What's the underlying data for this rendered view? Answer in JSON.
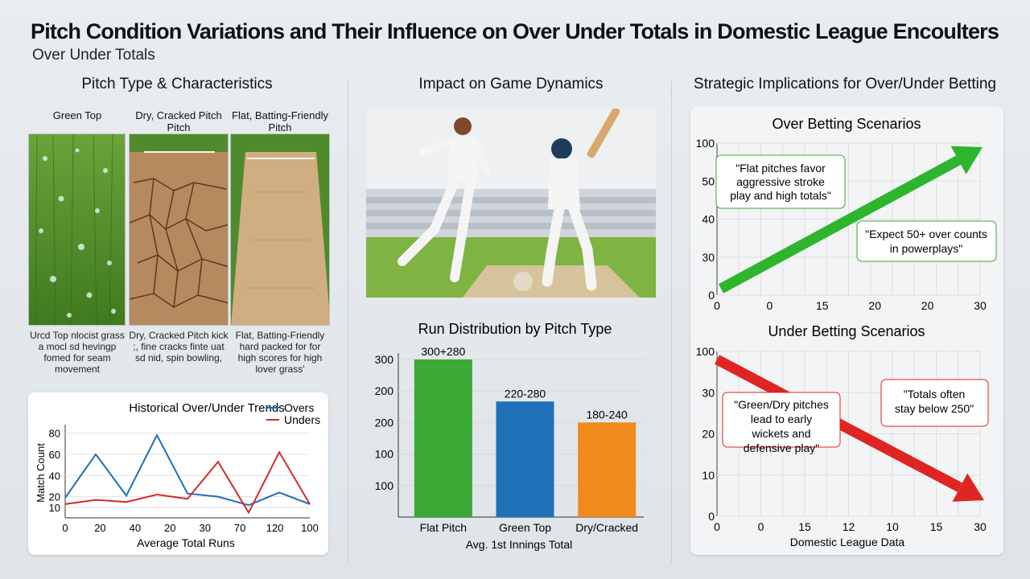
{
  "header": {
    "title": "Pitch Condition Variations and Their Influence on Over Under Totals in Domestic League Encoulters",
    "subtitle": "Over Under Totals"
  },
  "columns": {
    "left": "Pitch Type & Characteristics",
    "middle": "Impact on Game Dynamics",
    "right": "Strategic Implications for Over/Under Betting"
  },
  "pitches": [
    {
      "label": "Green Top",
      "desc": "Urcd Top nlocist grass a mocl sd hevingp fomed for seam movement",
      "color": "#5a9a2e"
    },
    {
      "label": "Dry, Cracked Pitch Pitch",
      "desc": "Dry, Cracked Pitch kick ;, fine cracks finte uat sd nid, spin bowling,",
      "color": "#b98a5c"
    },
    {
      "label": "Flat, Batting-Friendly Pitch",
      "desc": "Flat, Batting-Friendly hard packed for for high scores for high lover grass'",
      "color": "#c8a57a"
    }
  ],
  "chart_data": [
    {
      "type": "line",
      "title": "Historical Over/Under Trends",
      "xlabel": "Average Total Runs",
      "ylabel": "Match Count",
      "x_tick_labels": [
        "0",
        "20",
        "40",
        "20",
        "30",
        "70",
        "120",
        "100"
      ],
      "y_tick_labels": [
        "10",
        "20",
        "40",
        "60",
        "80"
      ],
      "series": [
        {
          "name": "Overs",
          "color": "#1f6fb5",
          "values": [
            19,
            60,
            21,
            78,
            23,
            20,
            12,
            24,
            13
          ]
        },
        {
          "name": "Unders",
          "color": "#d42a2a",
          "values": [
            13,
            17,
            15,
            22,
            18,
            53,
            5,
            62,
            13
          ]
        }
      ],
      "legend": "top-right"
    },
    {
      "type": "bar",
      "title": "Run Distribution by Pitch Type",
      "xlabel": "Avg. 1st Innings Total",
      "categories": [
        "Flat Pitch",
        "Green Top",
        "Dry/Cracked"
      ],
      "values": [
        300,
        220,
        180
      ],
      "data_labels": [
        "300+280",
        "220-280",
        "180-240"
      ],
      "colors": [
        "#3aa935",
        "#1f72b8",
        "#f08a1c"
      ],
      "y_tick_labels": [
        "100",
        "100",
        "200",
        "200",
        "300"
      ]
    },
    {
      "type": "line",
      "title": "Over Betting Scenarios",
      "x_tick_labels": [
        "0",
        "0",
        "15",
        "20",
        "20",
        "30"
      ],
      "y_tick_labels": [
        "0",
        "30",
        "40",
        "50",
        "100"
      ],
      "trend": "up",
      "color": "#2db52d",
      "annotations": [
        "\"Flat pitches favor aggressive stroke play and high totals\"",
        "\"Expect 50+ over counts in powerplays\""
      ]
    },
    {
      "type": "line",
      "title": "Under Betting Scenarios",
      "xlabel": "Domestic League Data",
      "x_tick_labels": [
        "0",
        "0",
        "15",
        "12",
        "10",
        "15",
        "30"
      ],
      "y_tick_labels": [
        "0",
        "10",
        "20",
        "30",
        "100"
      ],
      "trend": "down",
      "color": "#e02424",
      "annotations": [
        "\"Green/Dry pitches lead to early wickets and defensive play\"",
        "\"Totals often stay below 250\""
      ]
    }
  ]
}
